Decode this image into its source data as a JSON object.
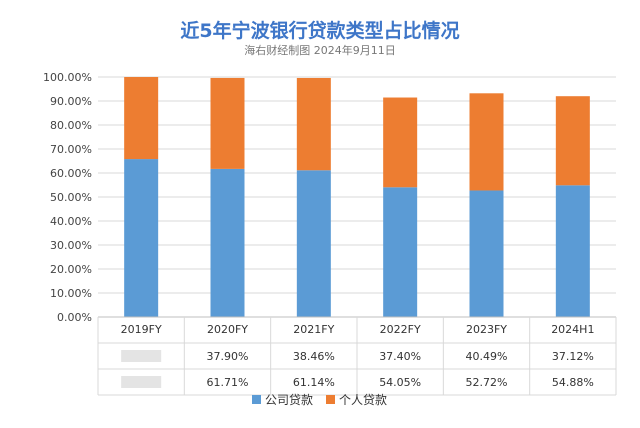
{
  "chart_data": {
    "type": "bar",
    "stacked": true,
    "title": "近5年宁波银行贷款类型占比情况",
    "subtitle": "海右财经制图 2024年9月11日",
    "categories": [
      "2019FY",
      "2020FY",
      "2021FY",
      "2022FY",
      "2023FY",
      "2024H1"
    ],
    "series": [
      {
        "name": "公司贷款",
        "color": "#5b9bd5",
        "values": [
          65.8,
          61.71,
          61.14,
          54.05,
          52.72,
          54.88
        ],
        "labels": [
          "",
          "61.71%",
          "61.14%",
          "54.05%",
          "52.72%",
          "54.88%"
        ]
      },
      {
        "name": "个人贷款",
        "color": "#ed7d31",
        "values": [
          34.2,
          37.9,
          38.46,
          37.4,
          40.49,
          37.12
        ],
        "labels": [
          "",
          "37.90%",
          "38.46%",
          "37.40%",
          "40.49%",
          "37.12%"
        ]
      }
    ],
    "y_ticks": [
      "0.00%",
      "10.00%",
      "20.00%",
      "30.00%",
      "40.00%",
      "50.00%",
      "60.00%",
      "70.00%",
      "80.00%",
      "90.00%",
      "100.00%"
    ],
    "ylim": [
      0,
      100
    ],
    "grid": true,
    "legend": "bottom"
  }
}
